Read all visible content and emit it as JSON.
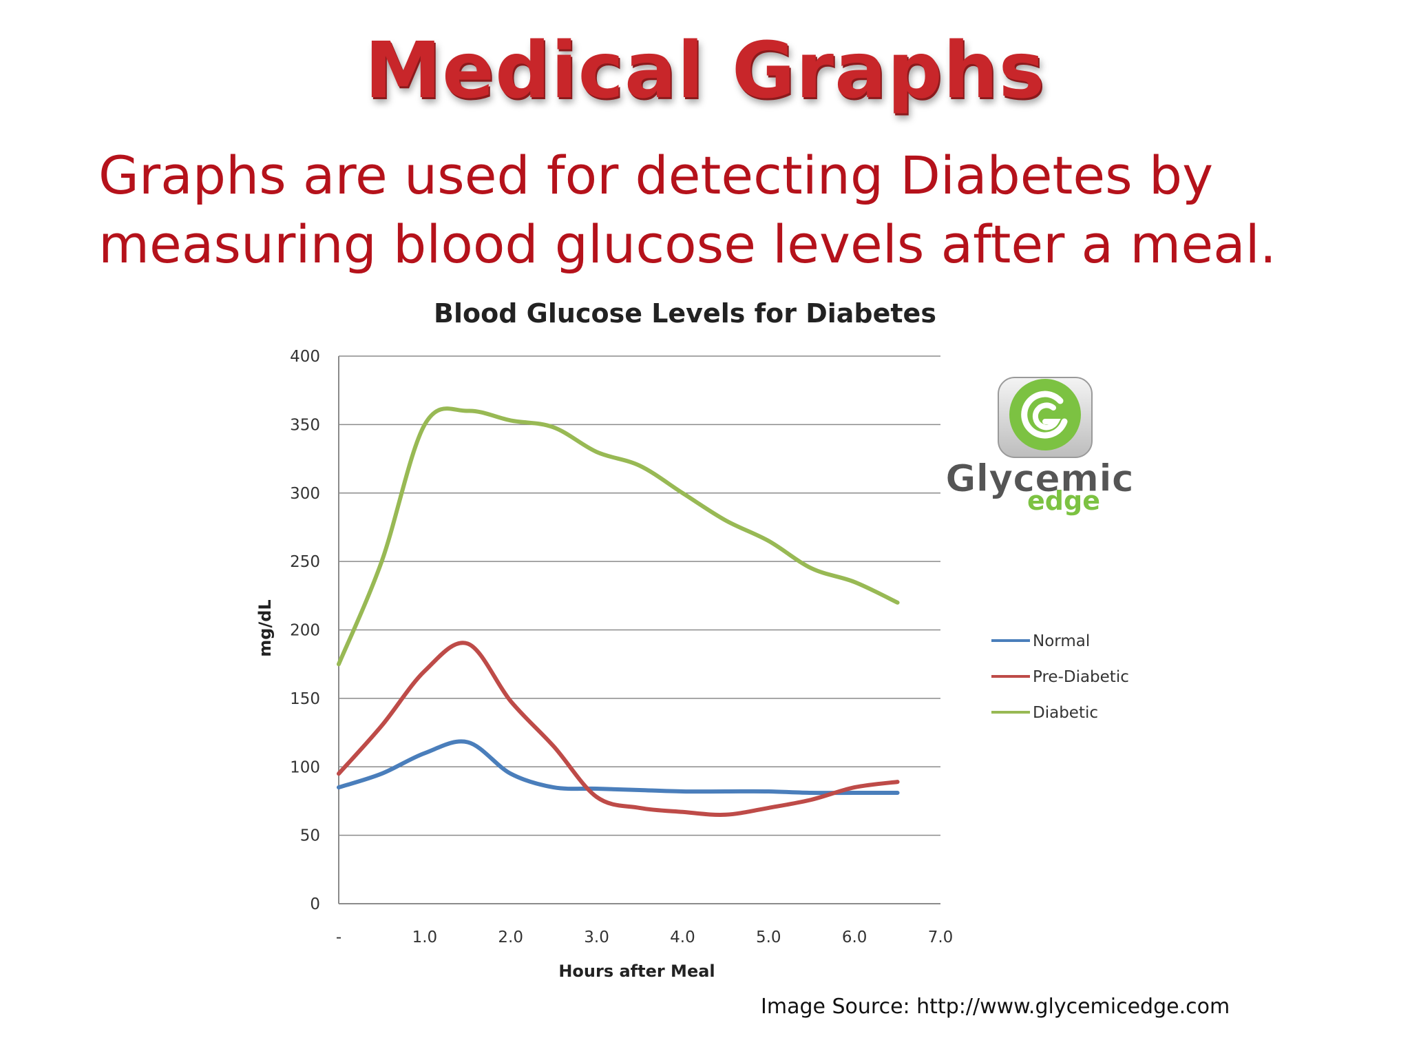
{
  "slide": {
    "title": "Medical Graphs",
    "body_lines": [
      "Graphs are used for detecting Diabetes by",
      "measuring blood glucose levels after a meal."
    ],
    "source": "Image Source: http://www.glycemicedge.com",
    "title_color": "#c8262a",
    "body_color": "#b5121b"
  },
  "logo": {
    "word_top": "Glycemic",
    "word_bottom": "edge",
    "green": "#7cc242",
    "gray": "#555555"
  },
  "chart_data": {
    "type": "line",
    "title": "Blood Glucose Levels for Diabetes",
    "xlabel": "Hours after Meal",
    "ylabel": "mg/dL",
    "ylim": [
      0,
      400
    ],
    "xlim": [
      0,
      7
    ],
    "x_ticks": [
      "-",
      "1.0",
      "2.0",
      "3.0",
      "4.0",
      "5.0",
      "6.0",
      "7.0"
    ],
    "y_ticks": [
      "0",
      "50",
      "100",
      "150",
      "200",
      "250",
      "300",
      "350",
      "400"
    ],
    "grid": true,
    "legend_position": "right",
    "series": [
      {
        "name": "Normal",
        "color": "#4a7ebb",
        "x": [
          0,
          0.5,
          1.0,
          1.5,
          2.0,
          2.5,
          3.0,
          3.5,
          4.0,
          4.5,
          5.0,
          5.5,
          6.0,
          6.5
        ],
        "values": [
          85,
          95,
          110,
          118,
          95,
          85,
          84,
          83,
          82,
          82,
          82,
          81,
          81,
          81
        ]
      },
      {
        "name": "Pre-Diabetic",
        "color": "#be4b48",
        "x": [
          0,
          0.5,
          1.0,
          1.5,
          2.0,
          2.5,
          3.0,
          3.5,
          4.0,
          4.5,
          5.0,
          5.5,
          6.0,
          6.5
        ],
        "values": [
          95,
          130,
          170,
          190,
          148,
          115,
          78,
          70,
          67,
          65,
          70,
          76,
          85,
          89
        ]
      },
      {
        "name": "Diabetic",
        "color": "#98b954",
        "x": [
          0,
          0.5,
          1.0,
          1.5,
          2.0,
          2.5,
          3.0,
          3.5,
          4.0,
          4.5,
          5.0,
          5.5,
          6.0,
          6.5
        ],
        "values": [
          175,
          250,
          350,
          360,
          353,
          348,
          330,
          320,
          300,
          280,
          265,
          245,
          235,
          220
        ]
      }
    ]
  }
}
